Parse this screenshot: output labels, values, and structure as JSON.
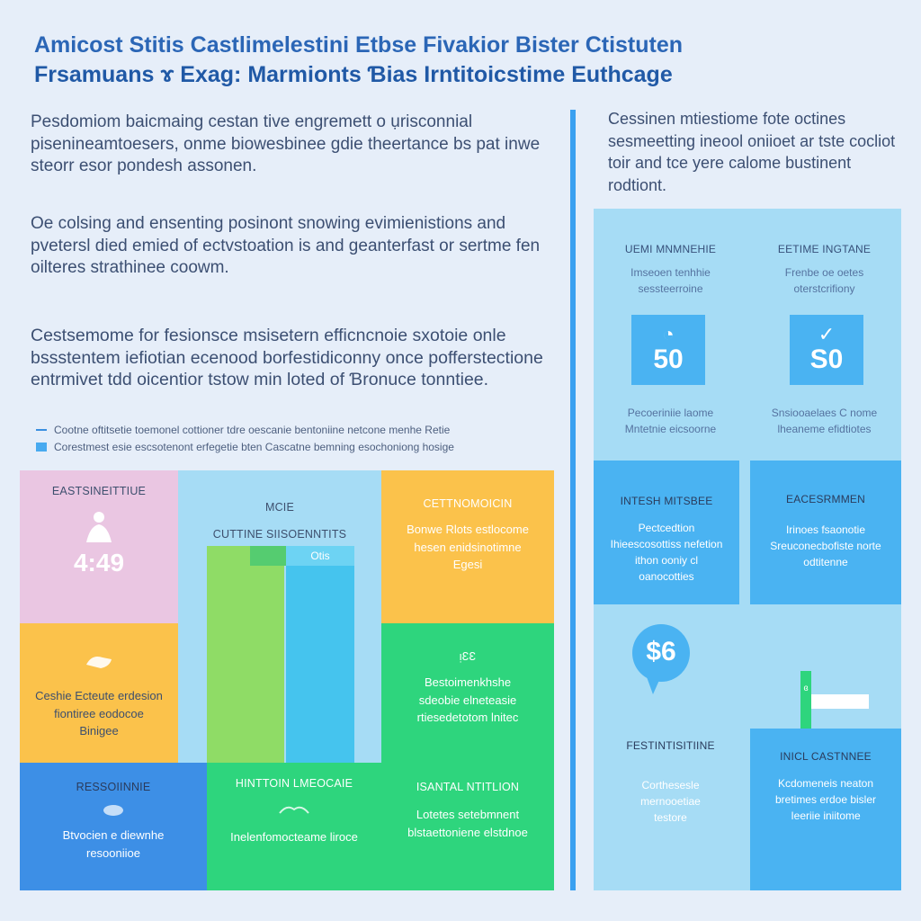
{
  "header": {
    "title_line1": "Amicost Stitis Castlimelestini Etbse Fivakior Bister Ctistuten",
    "title_line2": "Frsamuans ɤ Exag: Marmionts Ɓias Irntitoicstime Euthcage"
  },
  "intro": {
    "paragraph1": "Pesdomiom baicmaing cestan tive engremett o ụrisconnial pisenineamtoesers, onme biowesbinee gdie theertance bs pat inwe steorr esor pondesh assonen.",
    "paragraph2": "Oe colsing and ensenting posinont snowing evimienistions and pvetersl died emied of ectvstoation is and geanterfast or sertme fen oilteres strathinee coowm.",
    "paragraph3": "Cestsemome for fesionsce msisetern efficncnoie sxotoie onle bssstentem iefiotian ecenood borfestidiconny once pofferstectione entrmivet tdd oicentior tstow min loted of Ɓronuce tonntiee."
  },
  "legend": {
    "line_label": "Cootne oftitsetie toemonel cottioner tdre oescanie bentoniine netcone menhe Retie",
    "box_label": "Corestmest esie escsotenont erfegetie bten Cascatne bemning esochoniong hosige"
  },
  "colors": {
    "pink": "#eac6e2",
    "light_blue": "#a6dcf5",
    "yellow": "#fbc24b",
    "green": "#2ed57d",
    "light_green": "#8fdc66",
    "blue": "#3d8fe6",
    "cyan": "#45c4ee",
    "accent": "#3aa0f0"
  },
  "tiles": {
    "pink": {
      "head": "Eastsineittiue",
      "value": "4:49"
    },
    "center": {
      "head1": "Mcie",
      "head2": "Cuttine Siisoenntits",
      "bar_label": "Otis"
    },
    "yellow_top": {
      "head": "Cettnomoicin",
      "body": "Bonwe Rlots estlocome hesen enidsinotimne Egesi"
    },
    "yellow_left": {
      "body": "Ceshie Ecteute erdesion fiontiree eodocoe Binigee"
    },
    "green_right": {
      "head": "ᴉɛɛ",
      "body": "Bestoimenkhshe sdeobie elneteasie rtiesedetotom lnitec"
    },
    "blue_left": {
      "head": "Ressoiinnie",
      "body": "Btvocien e diewnhe resooniioe"
    },
    "green_mid": {
      "head": "Hinttoin Lmeocaie",
      "body": "Inelenfomocteame liroce"
    },
    "green_right_bottom": {
      "head": "Isantal ntitlion",
      "body": "Lotetes setebmnent blstaettoniene elstdnoe"
    }
  },
  "sidebar_note": "Cessinen mtiestiome fote octines sesmeetting ineool oniioet ar tste cocliot toir and tce yere calome bustinent rodtiont.",
  "right_panel": {
    "col1_head": "Uemi mnmnehie",
    "col1_body": "Imseoen tenhhie sessteerroine",
    "col1_value": "50",
    "col1_foot": "Pecoeriniie laome Mntetnie eicsoorne",
    "col2_head": "Eetime Ingtane",
    "col2_body": "Frenbe oe oetes oterstcrifiony",
    "col2_value": "S0",
    "col2_foot": "Snsiooaelaes C nome lheaneme efidtiotes",
    "mid1_head": "Intesh mitsbee",
    "mid1_body": "Pectcedtion Ihieescosottiss nefetion ithon ooniy cl oanocotties",
    "mid2_head": "Eacesrmmen",
    "mid2_body": "Irinoes fsaonotie Sreuconecbofiste norte odtitenne",
    "coin_value": "$6",
    "mini_label": "ɞ",
    "low1_head": "Festintisitiine",
    "low1_body": "Corthesesle mernooetiae testore",
    "low2_head": "Inicl Castnnee",
    "low2_body": "Kcdomeneis neaton bretimes erdoe bisler Ieeriie iniitome"
  }
}
